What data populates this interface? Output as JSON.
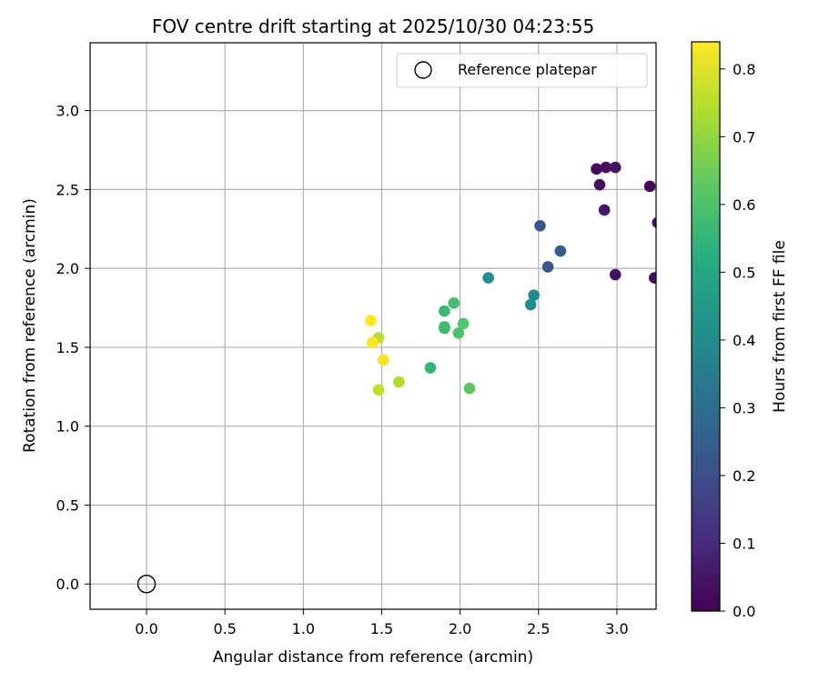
{
  "chart_data": {
    "type": "scatter",
    "title": "FOV centre drift starting at 2025/10/30 04:23:55",
    "xlabel": "Angular distance from reference (arcmin)",
    "ylabel": "Rotation from reference (arcmin)",
    "xlim": [
      -0.36,
      3.25
    ],
    "ylim": [
      -0.16,
      3.43
    ],
    "xticks": [
      0.0,
      0.5,
      1.0,
      1.5,
      2.0,
      2.5,
      3.0
    ],
    "yticks": [
      0.0,
      0.5,
      1.0,
      1.5,
      2.0,
      2.5,
      3.0
    ],
    "grid": true,
    "legend": {
      "position": "top-right",
      "entries": [
        "Reference platepar"
      ]
    },
    "reference_point": {
      "x": 0.0,
      "y": 0.0,
      "label": "Reference platepar"
    },
    "colorbar": {
      "label": "Hours from first FF file",
      "range": [
        0.0,
        0.84
      ],
      "ticks": [
        0.0,
        0.1,
        0.2,
        0.3,
        0.4,
        0.5,
        0.6,
        0.7,
        0.8
      ],
      "colormap": "viridis"
    },
    "points": [
      {
        "x": 2.87,
        "y": 2.63,
        "c": 0.02
      },
      {
        "x": 2.93,
        "y": 2.64,
        "c": 0.03
      },
      {
        "x": 2.99,
        "y": 2.64,
        "c": 0.04
      },
      {
        "x": 2.89,
        "y": 2.53,
        "c": 0.03
      },
      {
        "x": 2.92,
        "y": 2.37,
        "c": 0.05
      },
      {
        "x": 3.21,
        "y": 2.52,
        "c": 0.02
      },
      {
        "x": 3.26,
        "y": 2.29,
        "c": 0.03
      },
      {
        "x": 2.99,
        "y": 1.96,
        "c": 0.04
      },
      {
        "x": 3.24,
        "y": 1.94,
        "c": 0.03
      },
      {
        "x": 2.51,
        "y": 2.27,
        "c": 0.22
      },
      {
        "x": 2.64,
        "y": 2.11,
        "c": 0.24
      },
      {
        "x": 2.56,
        "y": 2.01,
        "c": 0.23
      },
      {
        "x": 2.18,
        "y": 1.94,
        "c": 0.42
      },
      {
        "x": 2.47,
        "y": 1.83,
        "c": 0.4
      },
      {
        "x": 2.45,
        "y": 1.77,
        "c": 0.41
      },
      {
        "x": 1.96,
        "y": 1.78,
        "c": 0.58
      },
      {
        "x": 1.9,
        "y": 1.73,
        "c": 0.56
      },
      {
        "x": 1.9,
        "y": 1.63,
        "c": 0.57
      },
      {
        "x": 1.9,
        "y": 1.62,
        "c": 0.57
      },
      {
        "x": 2.02,
        "y": 1.65,
        "c": 0.61
      },
      {
        "x": 1.99,
        "y": 1.59,
        "c": 0.6
      },
      {
        "x": 1.81,
        "y": 1.37,
        "c": 0.55
      },
      {
        "x": 2.06,
        "y": 1.24,
        "c": 0.62
      },
      {
        "x": 1.43,
        "y": 1.67,
        "c": 0.84
      },
      {
        "x": 1.48,
        "y": 1.56,
        "c": 0.75
      },
      {
        "x": 1.44,
        "y": 1.53,
        "c": 0.84
      },
      {
        "x": 1.51,
        "y": 1.42,
        "c": 0.82
      },
      {
        "x": 1.61,
        "y": 1.28,
        "c": 0.74
      },
      {
        "x": 1.48,
        "y": 1.23,
        "c": 0.76
      }
    ]
  }
}
